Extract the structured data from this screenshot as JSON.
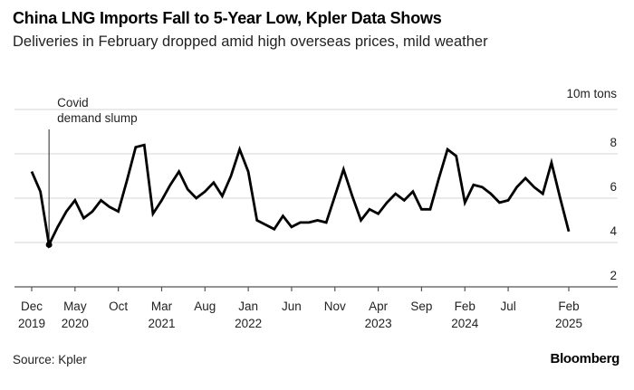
{
  "chart_data": {
    "type": "line",
    "title": "China LNG Imports Fall to 5-Year Low, Kpler Data Shows",
    "subtitle": "Deliveries in February dropped amid high overseas prices, mild weather",
    "ylabel": "10m tons",
    "ylim": [
      2,
      10
    ],
    "yticks": [
      2,
      4,
      6,
      8
    ],
    "grid": true,
    "x_start": "2019-12",
    "x_end": "2025-02",
    "xtick_labels": [
      {
        "month": "2019-12",
        "line1": "Dec",
        "line2": "2019"
      },
      {
        "month": "2020-05",
        "line1": "May",
        "line2": "2020"
      },
      {
        "month": "2020-10",
        "line1": "Oct",
        "line2": ""
      },
      {
        "month": "2021-03",
        "line1": "Mar",
        "line2": "2021"
      },
      {
        "month": "2021-08",
        "line1": "Aug",
        "line2": ""
      },
      {
        "month": "2022-01",
        "line1": "Jan",
        "line2": "2022"
      },
      {
        "month": "2022-06",
        "line1": "Jun",
        "line2": ""
      },
      {
        "month": "2022-11",
        "line1": "Nov",
        "line2": ""
      },
      {
        "month": "2023-04",
        "line1": "Apr",
        "line2": "2023"
      },
      {
        "month": "2023-09",
        "line1": "Sep",
        "line2": ""
      },
      {
        "month": "2024-02",
        "line1": "Feb",
        "line2": "2024"
      },
      {
        "month": "2024-07",
        "line1": "Jul",
        "line2": ""
      },
      {
        "month": "2025-02",
        "line1": "Feb",
        "line2": "2025"
      }
    ],
    "series": [
      {
        "color": "#000000",
        "x": [
          "2019-12",
          "2020-01",
          "2020-02",
          "2020-03",
          "2020-04",
          "2020-05",
          "2020-06",
          "2020-07",
          "2020-08",
          "2020-09",
          "2020-10",
          "2020-11",
          "2020-12",
          "2021-01",
          "2021-02",
          "2021-03",
          "2021-04",
          "2021-05",
          "2021-06",
          "2021-07",
          "2021-08",
          "2021-09",
          "2021-10",
          "2021-11",
          "2021-12",
          "2022-01",
          "2022-02",
          "2022-03",
          "2022-04",
          "2022-05",
          "2022-06",
          "2022-07",
          "2022-08",
          "2022-09",
          "2022-10",
          "2022-11",
          "2022-12",
          "2023-01",
          "2023-02",
          "2023-03",
          "2023-04",
          "2023-05",
          "2023-06",
          "2023-07",
          "2023-08",
          "2023-09",
          "2023-10",
          "2023-11",
          "2023-12",
          "2024-01",
          "2024-02",
          "2024-03",
          "2024-04",
          "2024-05",
          "2024-06",
          "2024-07",
          "2024-08",
          "2024-09",
          "2024-10",
          "2024-11",
          "2024-12",
          "2025-01",
          "2025-02"
        ],
        "values": [
          7.2,
          6.3,
          3.9,
          4.7,
          5.4,
          5.9,
          5.1,
          5.4,
          5.9,
          5.6,
          5.4,
          6.8,
          8.3,
          8.4,
          5.3,
          5.9,
          6.6,
          7.2,
          6.4,
          6.0,
          6.3,
          6.7,
          6.1,
          7.0,
          8.2,
          7.2,
          5.0,
          4.8,
          4.6,
          5.2,
          4.7,
          4.9,
          4.9,
          5.0,
          4.9,
          6.1,
          7.3,
          6.1,
          5.0,
          5.5,
          5.3,
          5.8,
          6.2,
          5.9,
          6.3,
          5.5,
          5.5,
          6.9,
          8.2,
          7.9,
          5.8,
          6.6,
          6.5,
          6.2,
          5.8,
          5.9,
          6.5,
          6.9,
          6.5,
          6.2,
          7.6,
          6.0,
          4.5
        ]
      }
    ],
    "annotations": [
      {
        "month": "2020-02",
        "value": 3.9,
        "line1": "Covid",
        "line2": "demand slump"
      }
    ]
  },
  "footer": {
    "source": "Source: Kpler",
    "logo": "Bloomberg"
  }
}
